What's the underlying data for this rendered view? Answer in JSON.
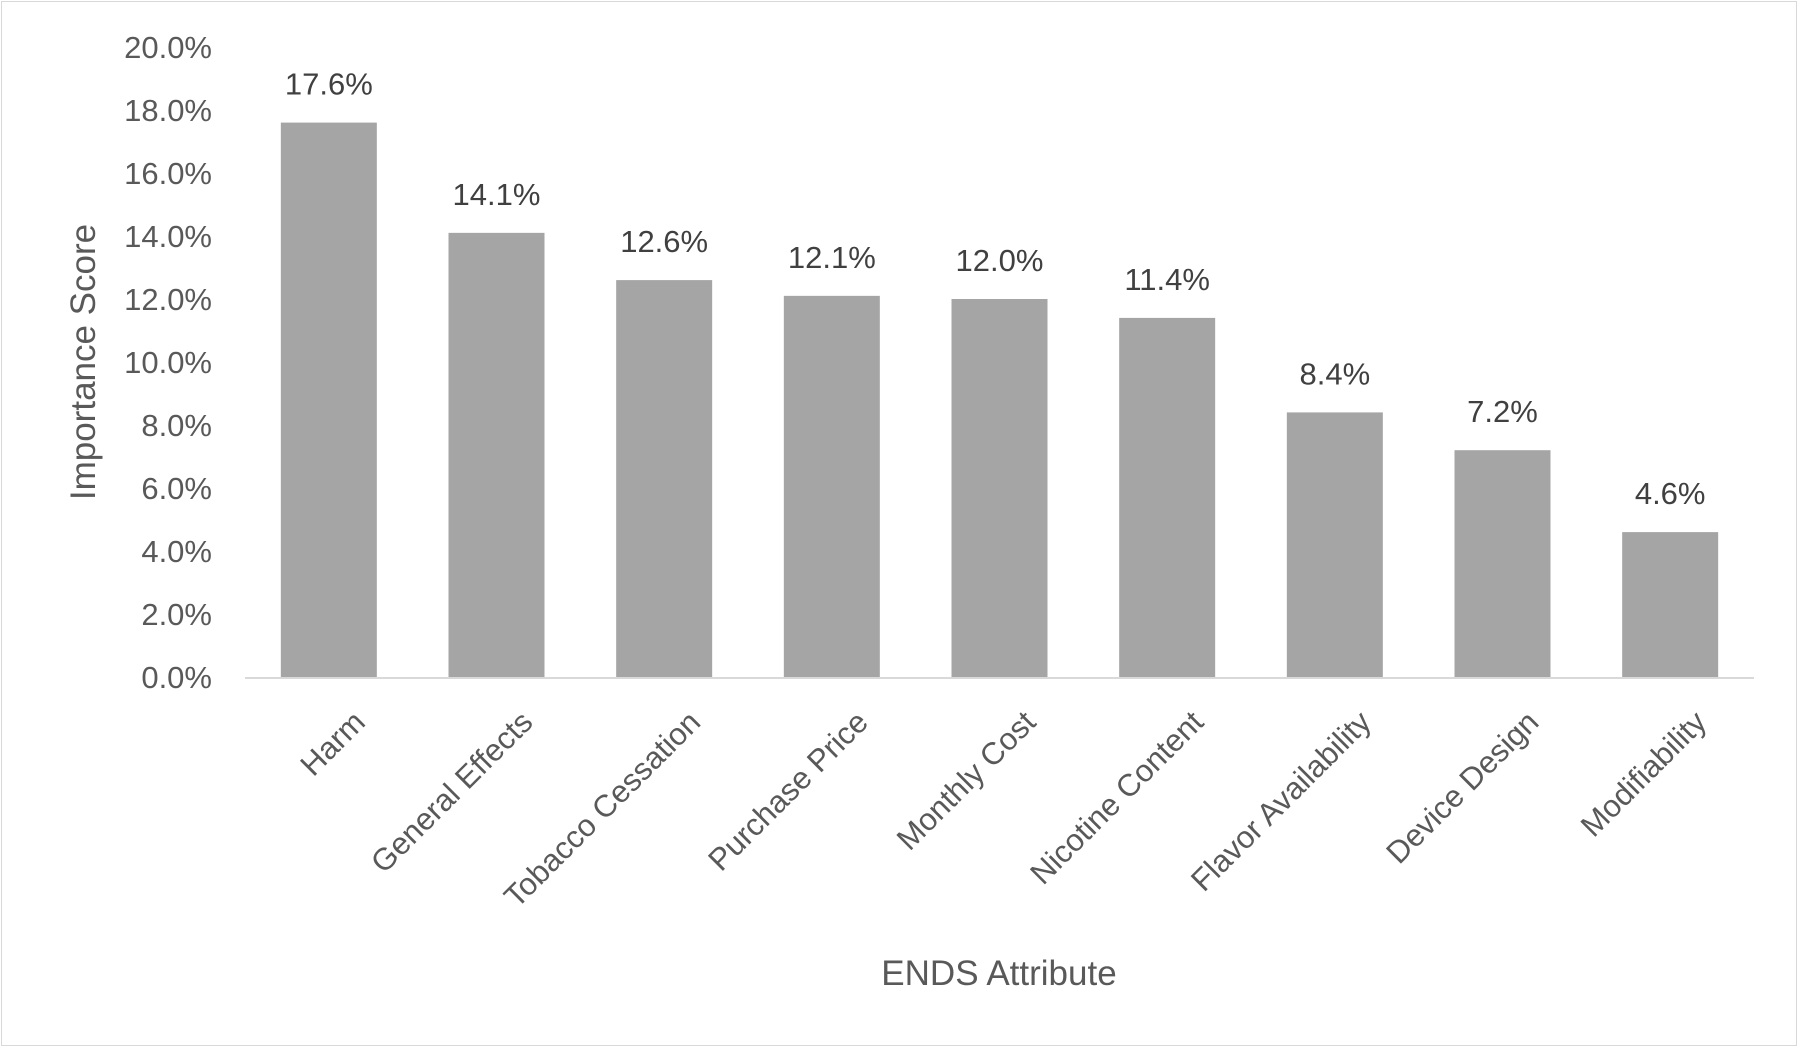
{
  "chart_data": {
    "type": "bar",
    "title": "",
    "xlabel": "ENDS Attribute",
    "ylabel": "Importance Score",
    "categories": [
      "Harm",
      "General Effects",
      "Tobacco Cessation",
      "Purchase Price",
      "Monthly Cost",
      "Nicotine Content",
      "Flavor Availability",
      "Device Design",
      "Modifiability"
    ],
    "values": [
      17.6,
      14.1,
      12.6,
      12.1,
      12.0,
      11.4,
      8.4,
      7.2,
      4.6
    ],
    "data_labels": [
      "17.6%",
      "14.1%",
      "12.6%",
      "12.1%",
      "12.0%",
      "11.4%",
      "8.4%",
      "7.2%",
      "4.6%"
    ],
    "ylim": [
      0,
      20
    ],
    "yticks": [
      0,
      2,
      4,
      6,
      8,
      10,
      12,
      14,
      16,
      18,
      20
    ],
    "ytick_labels": [
      "0.0%",
      "2.0%",
      "4.0%",
      "6.0%",
      "8.0%",
      "10.0%",
      "12.0%",
      "14.0%",
      "16.0%",
      "18.0%",
      "20.0%"
    ],
    "grid": false,
    "legend": "none",
    "bar_color": "#a5a5a5",
    "axis_color": "#d9d9d9"
  }
}
